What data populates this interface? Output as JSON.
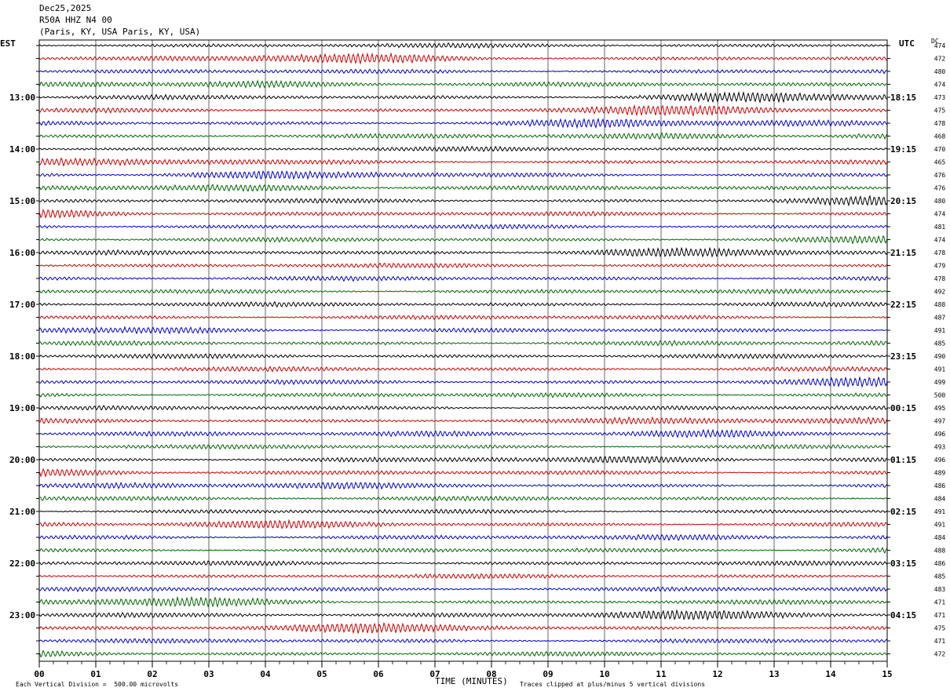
{
  "header": {
    "date": "Dec25,2025",
    "station": "R50A HHZ N4 00",
    "location": "(Paris, KY, USA Paris, KY, USA)"
  },
  "labels": {
    "left_tz": "EST",
    "right_tz": "UTC",
    "dc": "DC",
    "xlabel": "TIME (MINUTES)",
    "scale_note": "Each Vertical Division =  500.00 microvolts",
    "clip_note": "Traces clipped at plus/minus 5 vertical divisions"
  },
  "colors": {
    "trace_cycle": [
      "#000000",
      "#cc0000",
      "#0000cc",
      "#006600"
    ],
    "grid": "#000000"
  },
  "chart_data": {
    "type": "line",
    "title": "",
    "xlabel": "TIME (MINUTES)",
    "xlim": [
      0,
      15
    ],
    "x_ticks": [
      "00",
      "01",
      "02",
      "03",
      "04",
      "05",
      "06",
      "07",
      "08",
      "09",
      "10",
      "11",
      "12",
      "13",
      "14",
      "15"
    ],
    "rows": 48,
    "left_hour_labels": [
      {
        "row": 4,
        "label": "13:00"
      },
      {
        "row": 8,
        "label": "14:00"
      },
      {
        "row": 12,
        "label": "15:00"
      },
      {
        "row": 16,
        "label": "16:00"
      },
      {
        "row": 20,
        "label": "17:00"
      },
      {
        "row": 24,
        "label": "18:00"
      },
      {
        "row": 28,
        "label": "19:00"
      },
      {
        "row": 32,
        "label": "20:00"
      },
      {
        "row": 36,
        "label": "21:00"
      },
      {
        "row": 40,
        "label": "22:00"
      },
      {
        "row": 44,
        "label": "23:00"
      }
    ],
    "right_hour_labels": [
      {
        "row": 4,
        "label": "18:15"
      },
      {
        "row": 8,
        "label": "19:15"
      },
      {
        "row": 12,
        "label": "20:15"
      },
      {
        "row": 16,
        "label": "21:15"
      },
      {
        "row": 20,
        "label": "22:15"
      },
      {
        "row": 24,
        "label": "23:15"
      },
      {
        "row": 28,
        "label": "00:15"
      },
      {
        "row": 32,
        "label": "01:15"
      },
      {
        "row": 36,
        "label": "02:15"
      },
      {
        "row": 40,
        "label": "03:15"
      },
      {
        "row": 44,
        "label": "04:15"
      }
    ],
    "dc_offsets": [
      474,
      472,
      480,
      474,
      473,
      475,
      478,
      468,
      470,
      465,
      476,
      476,
      480,
      474,
      481,
      474,
      478,
      479,
      478,
      492,
      488,
      487,
      491,
      485,
      490,
      491,
      499,
      500,
      495,
      497,
      496,
      493,
      496,
      489,
      486,
      484,
      491,
      491,
      484,
      488,
      486,
      485,
      483,
      471,
      471,
      475,
      471,
      472
    ]
  }
}
